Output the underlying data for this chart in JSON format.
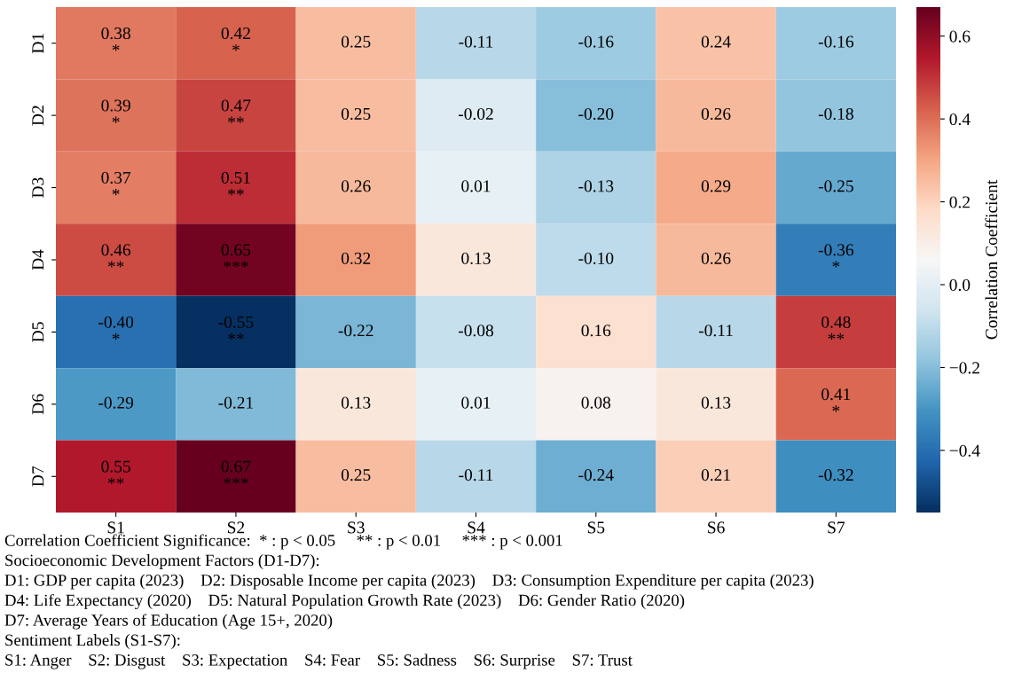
{
  "chart_data": {
    "type": "heatmap",
    "categories": [
      "S1",
      "S2",
      "S3",
      "S4",
      "S5",
      "S6",
      "S7"
    ],
    "y_categories": [
      "D1",
      "D2",
      "D3",
      "D4",
      "D5",
      "D6",
      "D7"
    ],
    "cells": [
      [
        0.38,
        0.42,
        0.25,
        -0.11,
        -0.16,
        0.24,
        -0.16
      ],
      [
        0.39,
        0.47,
        0.25,
        -0.02,
        -0.2,
        0.26,
        -0.18
      ],
      [
        0.37,
        0.51,
        0.26,
        0.01,
        -0.13,
        0.29,
        -0.25
      ],
      [
        0.46,
        0.65,
        0.32,
        0.13,
        -0.1,
        0.26,
        -0.36
      ],
      [
        -0.4,
        -0.55,
        -0.22,
        -0.08,
        0.16,
        -0.11,
        0.48
      ],
      [
        -0.29,
        -0.21,
        0.13,
        0.01,
        0.08,
        0.13,
        0.41
      ],
      [
        0.55,
        0.67,
        0.25,
        -0.11,
        -0.24,
        0.21,
        -0.32
      ]
    ],
    "cell_labels": [
      [
        "0.38\n*",
        "0.42\n*",
        "0.25",
        "-0.11",
        "-0.16",
        "0.24",
        "-0.16"
      ],
      [
        "0.39\n*",
        "0.47\n**",
        "0.25",
        "-0.02",
        "-0.20",
        "0.26",
        "-0.18"
      ],
      [
        "0.37\n*",
        "0.51\n**",
        "0.26",
        "0.01",
        "-0.13",
        "0.29",
        "-0.25"
      ],
      [
        "0.46\n**",
        "0.65\n***",
        "0.32",
        "0.13",
        "-0.10",
        "0.26",
        "-0.36\n*"
      ],
      [
        "-0.40\n*",
        "-0.55\n**",
        "-0.22",
        "-0.08",
        "0.16",
        "-0.11",
        "0.48\n**"
      ],
      [
        "-0.29",
        "-0.21",
        "0.13",
        "0.01",
        "0.08",
        "0.13",
        "0.41\n*"
      ],
      [
        "0.55\n**",
        "0.67\n***",
        "0.25",
        "-0.11",
        "-0.24",
        "0.21",
        "-0.32"
      ]
    ],
    "clim": [
      -0.55,
      0.67
    ],
    "cticks": [
      {
        "value": -0.4,
        "label": "−0.4"
      },
      {
        "value": -0.2,
        "label": "−0.2"
      },
      {
        "value": 0.0,
        "label": "0.0"
      },
      {
        "value": 0.2,
        "label": "0.2"
      },
      {
        "value": 0.4,
        "label": "0.4"
      },
      {
        "value": 0.6,
        "label": "0.6"
      }
    ],
    "clabel": "Correlation Coefficient",
    "annotations": [
      "Correlation Coefficient Significance:  * : p < 0.05     ** : p < 0.01     *** : p < 0.001",
      "Socioeconomic Development Factors (D1-D7):",
      "D1: GDP per capita (2023)    D2: Disposable Income per capita (2023)    D3: Consumption Expenditure per capita (2023)",
      "D4: Life Expectancy (2020)    D5: Natural Population Growth Rate (2023)    D6: Gender Ratio (2020)",
      "D7: Average Years of Education (Age 15+, 2020)",
      "Sentiment Labels (S1-S7):",
      "S1: Anger    S2: Disgust    S3: Expectation    S4: Fear    S5: Sadness    S6: Surprise    S7: Trust"
    ]
  }
}
